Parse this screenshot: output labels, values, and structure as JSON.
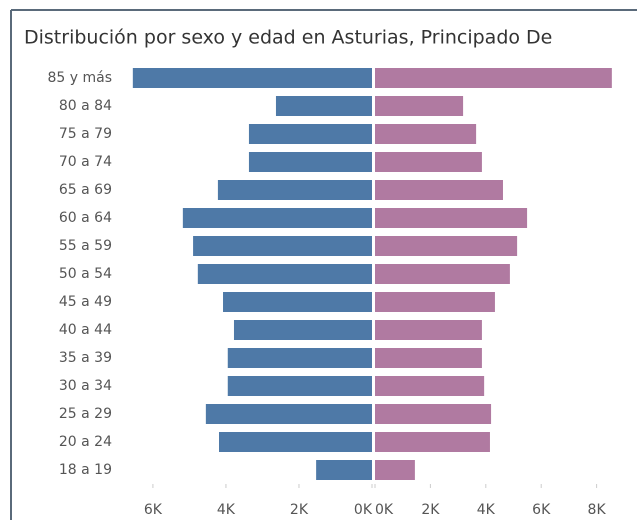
{
  "chart_data": {
    "type": "pyramid",
    "title": "Distribución por sexo y edad en Asturias, Principado De",
    "categories": [
      "85 y más",
      "80 a 84",
      "75 a 79",
      "70 a 74",
      "65 a 69",
      "60 a 64",
      "55 a 59",
      "50 a 54",
      "45 a 49",
      "40 a 44",
      "35 a 39",
      "30 a 34",
      "25 a 29",
      "20 a 24",
      "18 a 19"
    ],
    "series": [
      {
        "color": "#4e79a7",
        "values": [
          6550,
          2630,
          3370,
          3370,
          4220,
          5180,
          4900,
          4770,
          4080,
          3780,
          3950,
          3950,
          4550,
          4190,
          1530
        ],
        "xlim": [
          0,
          6600
        ],
        "xticks": [
          {
            "value": 0,
            "label": "0K"
          },
          {
            "value": 2000,
            "label": "2K"
          },
          {
            "value": 4000,
            "label": "4K"
          },
          {
            "value": 6000,
            "label": "6K"
          }
        ]
      },
      {
        "color": "#b07aa1",
        "values": [
          8550,
          3180,
          3650,
          3860,
          4620,
          5490,
          5130,
          4870,
          4330,
          3860,
          3860,
          3940,
          4190,
          4150,
          1440
        ],
        "xlim": [
          0,
          8700
        ],
        "xticks": [
          {
            "value": 0,
            "label": "0K"
          },
          {
            "value": 2000,
            "label": "2K"
          },
          {
            "value": 4000,
            "label": "4K"
          },
          {
            "value": 6000,
            "label": "6K"
          },
          {
            "value": 8000,
            "label": "8K"
          }
        ]
      }
    ]
  }
}
